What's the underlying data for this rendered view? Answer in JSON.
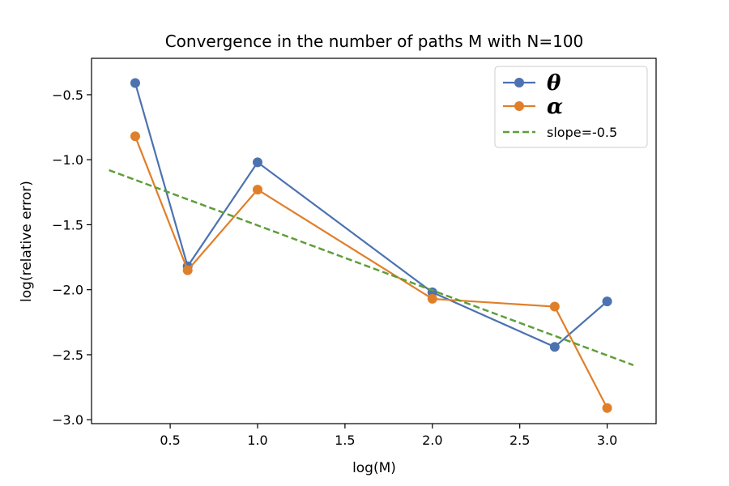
{
  "chart_data": {
    "type": "line",
    "title": "Convergence in the number of paths M with N=100",
    "xlabel": "log(M)",
    "ylabel": "log(relative error)",
    "xlim": [
      0.05,
      3.28
    ],
    "ylim": [
      -3.03,
      -0.22
    ],
    "xticks": [
      0.5,
      1.0,
      1.5,
      2.0,
      2.5,
      3.0
    ],
    "xtick_labels": [
      "0.5",
      "1.0",
      "1.5",
      "2.0",
      "2.5",
      "3.0"
    ],
    "yticks": [
      -0.5,
      -1.0,
      -1.5,
      -2.0,
      -2.5,
      -3.0
    ],
    "ytick_labels": [
      "−0.5",
      "−1.0",
      "−1.5",
      "−2.0",
      "−2.5",
      "−3.0"
    ],
    "legend_position": "top-right",
    "grid": false,
    "series": [
      {
        "name": "θ",
        "color": "#4c72b0",
        "style": "solid-markers",
        "x": [
          0.3,
          0.6,
          1.0,
          2.0,
          2.7,
          3.0
        ],
        "y": [
          -0.41,
          -1.82,
          -1.02,
          -2.02,
          -2.44,
          -2.09
        ]
      },
      {
        "name": "α",
        "color": "#e07f2a",
        "style": "solid-markers",
        "x": [
          0.3,
          0.6,
          1.0,
          2.0,
          2.7,
          3.0
        ],
        "y": [
          -0.82,
          -1.85,
          -1.23,
          -2.07,
          -2.13,
          -2.91
        ]
      },
      {
        "name": "slope=-0.5",
        "color": "#5f9e3a",
        "style": "dashed",
        "x": [
          0.15,
          3.15
        ],
        "y": [
          -1.08,
          -2.58
        ]
      }
    ]
  }
}
